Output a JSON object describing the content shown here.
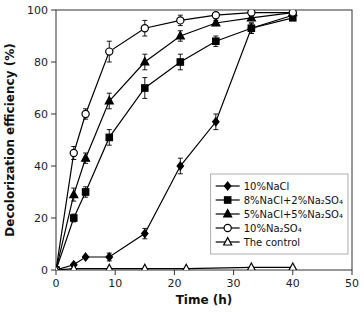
{
  "chart_data": {
    "type": "line",
    "xlabel": "Time (h)",
    "ylabel": "Decolorization efficiency (%)",
    "xlim": [
      0,
      50
    ],
    "ylim": [
      0,
      100
    ],
    "xticks": [
      0,
      10,
      20,
      30,
      40,
      50
    ],
    "yticks": [
      0,
      20,
      40,
      60,
      80,
      100
    ],
    "grid": false,
    "legend": "lower right",
    "series": [
      {
        "name": "10%NaCl",
        "color": "#000000",
        "marker": "diamond",
        "line_style": "solid",
        "x": [
          0,
          3,
          5,
          9,
          15,
          21,
          27,
          33,
          40
        ],
        "values": [
          0,
          2,
          5,
          5,
          14,
          40,
          57,
          93,
          98
        ],
        "errors": [
          0,
          0.5,
          0.5,
          1.5,
          2,
          3,
          3,
          2,
          1
        ]
      },
      {
        "name": "8%NaCl+2%Na₂SO₄",
        "color": "#000000",
        "marker": "square",
        "line_style": "solid",
        "x": [
          0,
          3,
          5,
          9,
          15,
          21,
          27,
          33,
          40
        ],
        "values": [
          0,
          20,
          30,
          51,
          70,
          80,
          88,
          93,
          97
        ],
        "errors": [
          0,
          1.5,
          2,
          3,
          4,
          3,
          2,
          2,
          1
        ]
      },
      {
        "name": "5%NaCl+5%Na₂SO₄",
        "color": "#000000",
        "marker": "triangle",
        "line_style": "solid",
        "x": [
          0,
          3,
          5,
          9,
          15,
          21,
          27,
          33,
          40
        ],
        "values": [
          0,
          29,
          43,
          65,
          80,
          90,
          95,
          97,
          99
        ],
        "errors": [
          0,
          2.5,
          2,
          3,
          3,
          2,
          1,
          1,
          0.5
        ]
      },
      {
        "name": "10%Na₂SO₄",
        "color": "#000000",
        "marker": "circle-open",
        "line_style": "solid",
        "x": [
          0,
          3,
          5,
          9,
          15,
          21,
          27,
          33,
          40
        ],
        "values": [
          0,
          45,
          60,
          84,
          93,
          96,
          98,
          99,
          99
        ],
        "errors": [
          0,
          2.5,
          2,
          4,
          3,
          2,
          1,
          0.5,
          0.5
        ]
      },
      {
        "name": "The control",
        "color": "#000000",
        "marker": "triangle-open",
        "line_style": "solid",
        "x": [
          0,
          3,
          9,
          15,
          22,
          33,
          40
        ],
        "values": [
          0,
          0.5,
          0.5,
          0.5,
          0.5,
          1,
          1
        ],
        "errors": [
          0,
          0,
          0,
          0,
          0,
          0,
          0
        ]
      }
    ]
  }
}
